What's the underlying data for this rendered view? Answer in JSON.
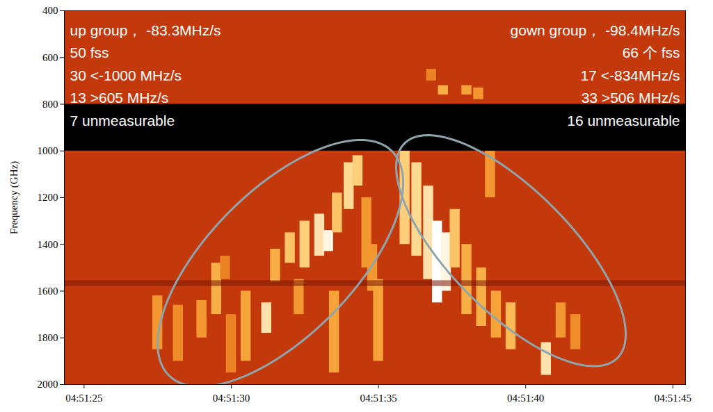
{
  "chart_data": {
    "type": "heatmap",
    "y_label": "Frequency (GHz)",
    "xlim": [
      24.33,
      45.43
    ],
    "xticks": [
      {
        "value": 25,
        "label": "04:51:25"
      },
      {
        "value": 30,
        "label": "04:51:30"
      },
      {
        "value": 35,
        "label": "04:51:35"
      },
      {
        "value": 40,
        "label": "04:51:40"
      },
      {
        "value": 45,
        "label": "04:51:45"
      }
    ],
    "ylim": [
      2000,
      400
    ],
    "yticks": [
      400,
      600,
      800,
      1000,
      1200,
      1400,
      1600,
      1800,
      2000
    ],
    "intensity_range": [
      0,
      1
    ],
    "data_gap": [
      800,
      1000
    ],
    "interference_band": [
      1555,
      1580
    ],
    "bursts": [
      [
        27.5,
        1620,
        1850,
        0.5
      ],
      [
        28.2,
        1660,
        1900,
        0.45
      ],
      [
        29.0,
        1640,
        1800,
        0.5
      ],
      [
        29.5,
        1480,
        1700,
        0.6
      ],
      [
        29.8,
        1450,
        1550,
        0.4
      ],
      [
        30.0,
        1700,
        1950,
        0.4
      ],
      [
        30.5,
        1600,
        1900,
        0.55
      ],
      [
        31.2,
        1650,
        1780,
        0.85
      ],
      [
        31.5,
        1420,
        1560,
        0.6
      ],
      [
        32.0,
        1350,
        1480,
        0.7
      ],
      [
        32.3,
        1550,
        1700,
        0.5
      ],
      [
        32.5,
        1300,
        1500,
        0.75
      ],
      [
        33.0,
        1270,
        1450,
        0.85
      ],
      [
        33.3,
        1340,
        1430,
        0.95
      ],
      [
        33.5,
        1600,
        1950,
        0.55
      ],
      [
        33.6,
        1180,
        1350,
        0.7
      ],
      [
        34.0,
        1050,
        1250,
        0.8
      ],
      [
        34.3,
        1020,
        1150,
        0.75
      ],
      [
        34.6,
        1200,
        1500,
        0.5
      ],
      [
        34.8,
        1400,
        1600,
        0.5
      ],
      [
        35.0,
        1550,
        1900,
        0.55
      ],
      [
        35.9,
        1000,
        1400,
        0.75
      ],
      [
        36.3,
        1050,
        1450,
        0.8
      ],
      [
        36.7,
        1150,
        1550,
        0.85
      ],
      [
        37.0,
        1300,
        1650,
        1.0
      ],
      [
        37.3,
        1350,
        1600,
        0.95
      ],
      [
        37.6,
        1250,
        1500,
        0.7
      ],
      [
        38.0,
        1400,
        1700,
        0.6
      ],
      [
        38.5,
        1500,
        1750,
        0.6
      ],
      [
        38.8,
        1000,
        1200,
        0.5
      ],
      [
        39.0,
        1600,
        1800,
        0.55
      ],
      [
        39.5,
        1650,
        1850,
        0.65
      ],
      [
        40.7,
        1820,
        1960,
        0.85
      ],
      [
        41.2,
        1650,
        1800,
        0.5
      ],
      [
        41.7,
        1700,
        1850,
        0.45
      ],
      [
        36.8,
        650,
        700,
        0.4
      ],
      [
        37.2,
        720,
        760,
        0.6
      ],
      [
        38.0,
        720,
        760,
        0.55
      ],
      [
        38.4,
        730,
        780,
        0.5
      ]
    ],
    "groups": [
      {
        "lines": [
          "up group， -83.3MHz/s",
          "50 fss",
          "30 <-1000 MHz/s",
          "13 >605 MHz/s",
          "7 unmeasurable"
        ],
        "ellipse": {
          "center": [
            31.67,
            1481
          ],
          "axis1": [
            3.79,
            -480
          ],
          "axis2": [
            1.74,
            220
          ]
        }
      },
      {
        "lines": [
          "gown group， -98.4MHz/s",
          "66 个 fss",
          "17 <-834MHz/s",
          "33 >506 MHz/s",
          "16 unmeasurable"
        ],
        "ellipse": {
          "center": [
            39.5,
            1427
          ],
          "axis1": [
            3.62,
            459
          ],
          "axis2": [
            1.45,
            -184
          ]
        }
      }
    ]
  }
}
